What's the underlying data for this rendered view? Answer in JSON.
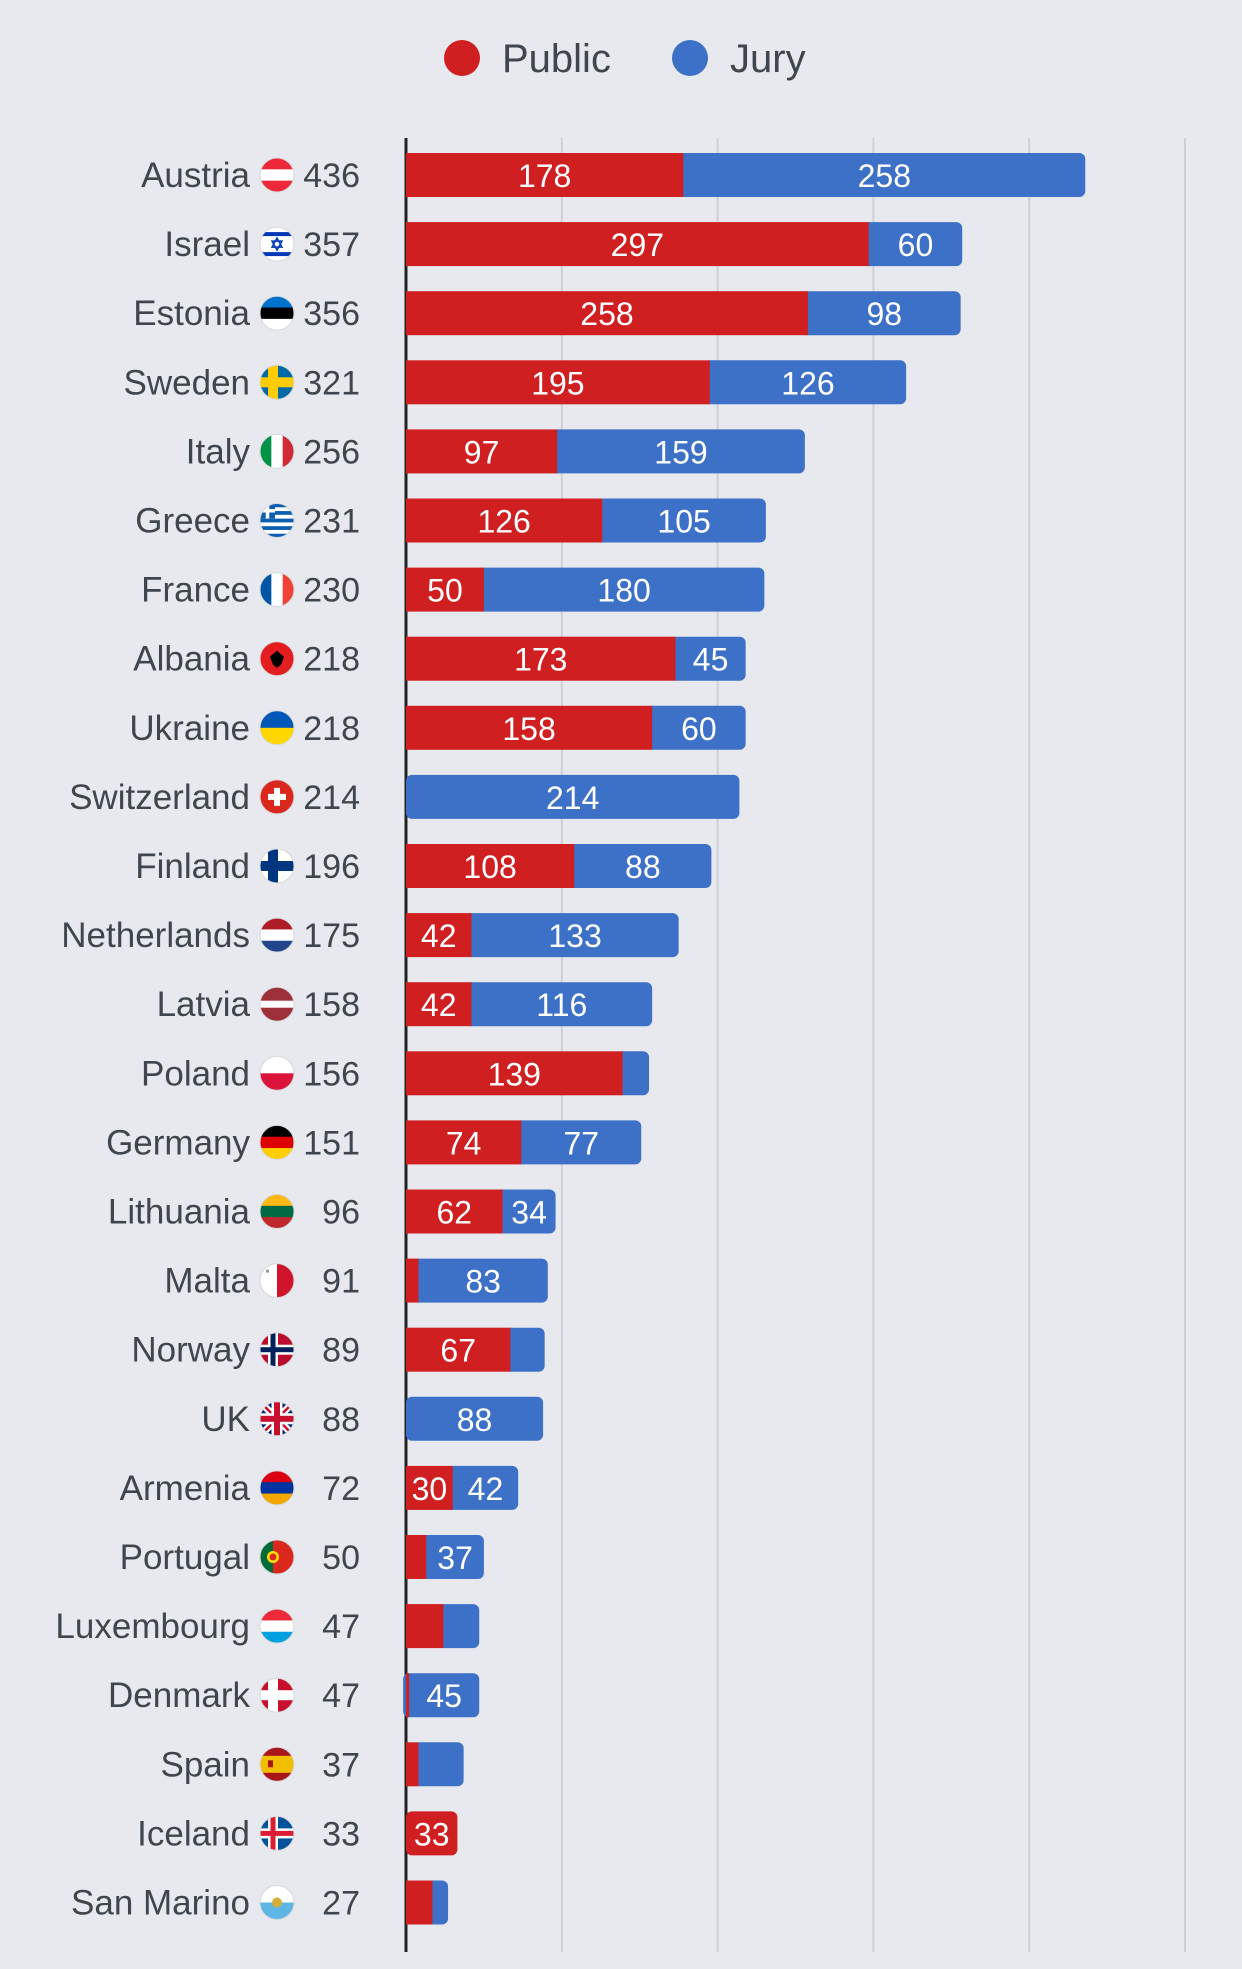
{
  "chart_data": {
    "type": "bar",
    "orientation": "horizontal",
    "stacked": true,
    "title": "",
    "xlabel": "",
    "ylabel": "",
    "xlim": [
      0,
      500
    ],
    "grid": true,
    "legend_position": "top",
    "categories": [
      "Austria",
      "Israel",
      "Estonia",
      "Sweden",
      "Italy",
      "Greece",
      "France",
      "Albania",
      "Ukraine",
      "Switzerland",
      "Finland",
      "Netherlands",
      "Latvia",
      "Poland",
      "Germany",
      "Lithuania",
      "Malta",
      "Norway",
      "UK",
      "Armenia",
      "Portugal",
      "Luxembourg",
      "Denmark",
      "Spain",
      "Iceland",
      "San Marino"
    ],
    "totals": [
      436,
      357,
      356,
      321,
      256,
      231,
      230,
      218,
      218,
      214,
      196,
      175,
      158,
      156,
      151,
      96,
      91,
      89,
      88,
      72,
      50,
      47,
      47,
      37,
      33,
      27
    ],
    "series": [
      {
        "name": "Public",
        "color": "#d01f20",
        "values": [
          178,
          297,
          258,
          195,
          97,
          126,
          50,
          173,
          158,
          0,
          108,
          42,
          42,
          139,
          74,
          62,
          8,
          67,
          0,
          30,
          13,
          24,
          2,
          8,
          33,
          17
        ],
        "labels": [
          "178",
          "297",
          "258",
          "195",
          "97",
          "126",
          "50",
          "173",
          "158",
          "",
          "108",
          "42",
          "42",
          "139",
          "74",
          "62",
          "",
          "67",
          "",
          "30",
          "",
          "",
          "",
          "",
          "33",
          ""
        ]
      },
      {
        "name": "Jury",
        "color": "#3d71c7",
        "values": [
          258,
          60,
          98,
          126,
          159,
          105,
          180,
          45,
          60,
          214,
          88,
          133,
          116,
          17,
          77,
          34,
          83,
          22,
          88,
          42,
          37,
          23,
          45,
          29,
          0,
          10
        ],
        "labels": [
          "258",
          "60",
          "98",
          "126",
          "159",
          "105",
          "180",
          "45",
          "60",
          "214",
          "88",
          "133",
          "116",
          "",
          "77",
          "34",
          "83",
          "",
          "88",
          "42",
          "37",
          "",
          "45",
          "",
          "",
          ""
        ]
      }
    ]
  },
  "flags": [
    "austria-flag-icon",
    "israel-flag-icon",
    "estonia-flag-icon",
    "sweden-flag-icon",
    "italy-flag-icon",
    "greece-flag-icon",
    "france-flag-icon",
    "albania-flag-icon",
    "ukraine-flag-icon",
    "switzerland-flag-icon",
    "finland-flag-icon",
    "netherlands-flag-icon",
    "latvia-flag-icon",
    "poland-flag-icon",
    "germany-flag-icon",
    "lithuania-flag-icon",
    "malta-flag-icon",
    "norway-flag-icon",
    "uk-flag-icon",
    "armenia-flag-icon",
    "portugal-flag-icon",
    "luxembourg-flag-icon",
    "denmark-flag-icon",
    "spain-flag-icon",
    "iceland-flag-icon",
    "san-marino-flag-icon"
  ]
}
